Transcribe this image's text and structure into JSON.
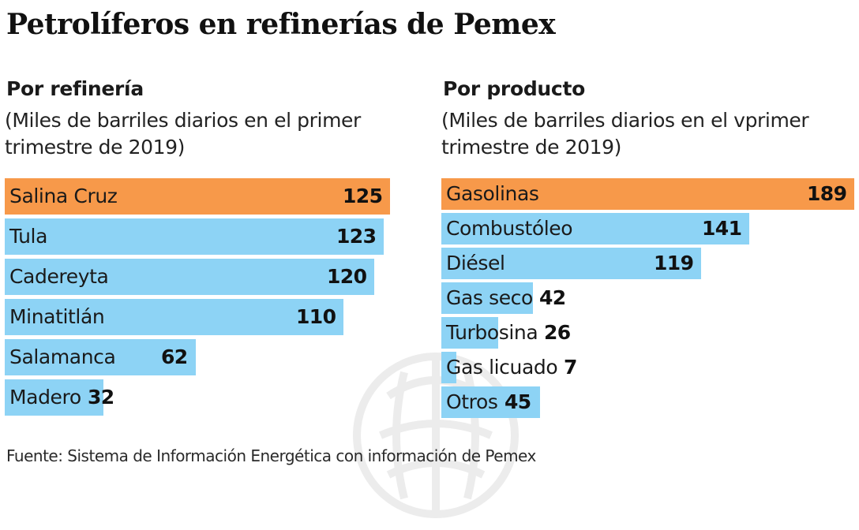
{
  "title": "Petrolíferos en refinerías de Pemex",
  "source": "Fuente: Sistema de Información Energética con información de Pemex",
  "colors": {
    "highlight": "#F7994A",
    "bar": "#8DD3F5",
    "watermark": "#ECECEC"
  },
  "watermark_icon": "pemex-emblem-watermark",
  "chart_data": [
    {
      "type": "bar",
      "orientation": "horizontal",
      "title": "Por refinería",
      "subtitle_lines": [
        "(Miles de barriles diarios en el primer",
        "trimestre de 2019)"
      ],
      "xlabel": "",
      "ylabel": "",
      "xlim": [
        0,
        125
      ],
      "grid": false,
      "legend": "none",
      "categories": [
        "Salina Cruz",
        "Tula",
        "Cadereyta",
        "Minatitlán",
        "Salamanca",
        "Madero"
      ],
      "values": [
        125,
        123,
        120,
        110,
        62,
        32
      ],
      "value_labels": [
        "125",
        "123",
        "120",
        "110",
        "62",
        "32"
      ],
      "highlight_index": 0
    },
    {
      "type": "bar",
      "orientation": "horizontal",
      "title": "Por producto",
      "subtitle_lines": [
        "(Miles de barriles diarios en el vprimer",
        "trimestre de 2019)"
      ],
      "xlabel": "",
      "ylabel": "",
      "xlim": [
        0,
        189
      ],
      "grid": false,
      "legend": "none",
      "categories": [
        "Gasolinas",
        "Combustóleo",
        "Diésel",
        "Gas seco",
        "Turbosina",
        "Gas licuado",
        "Otros"
      ],
      "values": [
        189,
        141,
        119,
        42,
        26,
        7,
        45
      ],
      "value_labels": [
        "189",
        "141",
        "119",
        "42",
        "26",
        "7",
        "45"
      ],
      "highlight_index": 0
    }
  ]
}
